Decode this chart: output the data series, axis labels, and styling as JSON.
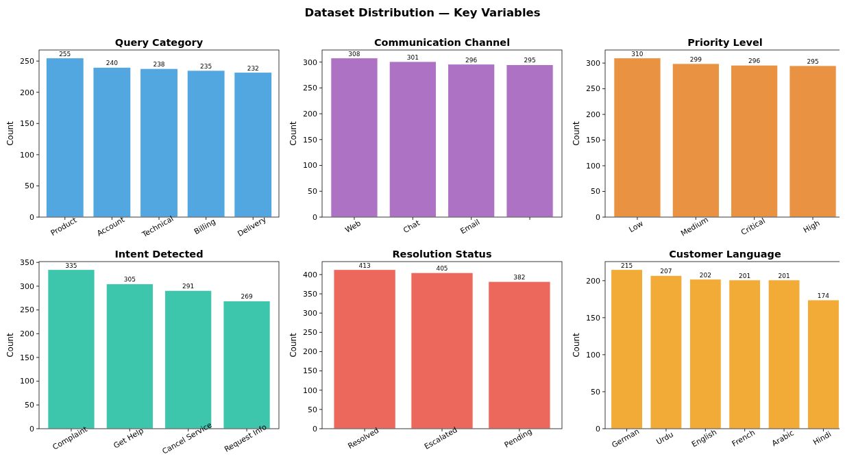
{
  "chart_data": [
    {
      "type": "bar",
      "title": "Query Category",
      "ylabel": "Count",
      "annotations": [
        "Dataset Distribution — Key Variables"
      ],
      "categories": [
        "Product",
        "Account",
        "Technical",
        "Billing",
        "Delivery"
      ],
      "values": [
        255,
        240,
        238,
        235,
        232
      ],
      "color": "#52a7e0",
      "ylim": [
        0,
        267.75
      ],
      "yticks": [
        0,
        50,
        100,
        150,
        200,
        250
      ],
      "data_labels": true
    },
    {
      "type": "bar",
      "title": "Communication Channel",
      "ylabel": "Count",
      "categories": [
        "Web",
        "Chat",
        "Email",
        null
      ],
      "values": [
        308,
        301,
        296,
        295
      ],
      "color": "#ad72c4",
      "ylim": [
        0,
        323.4
      ],
      "yticks": [
        0,
        50,
        100,
        150,
        200,
        250,
        300
      ],
      "data_labels": true
    },
    {
      "type": "bar",
      "title": "Priority Level",
      "ylabel": "Count",
      "categories": [
        "Low",
        "Medium",
        "Critical",
        "High"
      ],
      "values": [
        310,
        299,
        296,
        295
      ],
      "color": "#e89242",
      "ylim": [
        0,
        325.5
      ],
      "yticks": [
        0,
        50,
        100,
        150,
        200,
        250,
        300
      ],
      "data_labels": true
    },
    {
      "type": "bar",
      "title": "Intent Detected",
      "ylabel": "Count",
      "categories": [
        "Complaint",
        "Get Help",
        "Cancel Service",
        "Request Info"
      ],
      "values": [
        335,
        305,
        291,
        269
      ],
      "color": "#3dc6ac",
      "ylim": [
        0,
        351.75
      ],
      "yticks": [
        0,
        50,
        100,
        150,
        200,
        250,
        300,
        350
      ],
      "data_labels": true
    },
    {
      "type": "bar",
      "title": "Resolution Status",
      "ylabel": "Count",
      "categories": [
        "Resolved",
        "Escalated",
        "Pending"
      ],
      "values": [
        413,
        405,
        382
      ],
      "color": "#ec685c",
      "ylim": [
        0,
        433.65
      ],
      "yticks": [
        0,
        50,
        100,
        150,
        200,
        250,
        300,
        350,
        400
      ],
      "data_labels": true
    },
    {
      "type": "bar",
      "title": "Customer Language",
      "ylabel": "Count",
      "categories": [
        "German",
        "Urdu",
        "English",
        "French",
        "Arabic",
        "Hindi"
      ],
      "values": [
        215,
        207,
        202,
        201,
        201,
        174
      ],
      "color": "#f2ab36",
      "ylim": [
        0,
        225.75
      ],
      "yticks": [
        0,
        50,
        100,
        150,
        200
      ],
      "data_labels": true
    }
  ]
}
